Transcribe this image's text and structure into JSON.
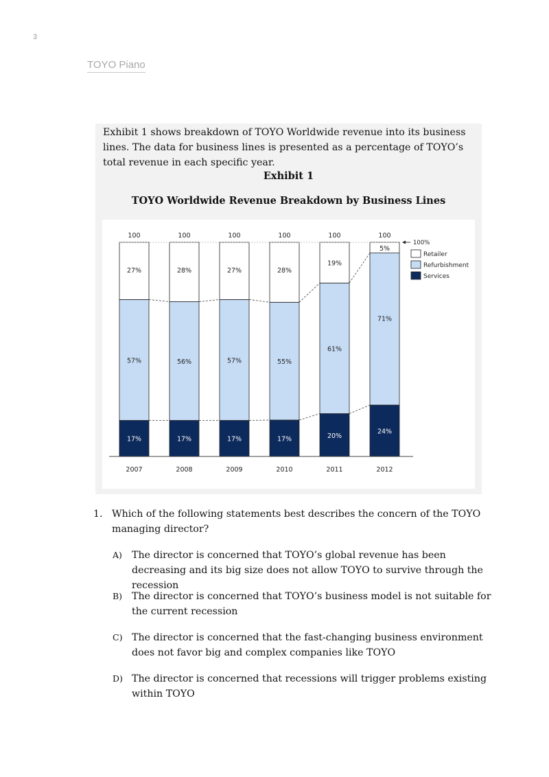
{
  "page_number": "3",
  "header": {
    "title": "TOYO Piano"
  },
  "exhibit": {
    "intro": "Exhibit 1 shows breakdown of TOYO Worldwide revenue into its business lines. The data for business lines is presented as a percentage of TOYO’s total revenue in each specific year.",
    "label": "Exhibit 1",
    "title": "TOYO Worldwide Revenue Breakdown by Business Lines"
  },
  "chart_data": {
    "type": "bar",
    "stacked": true,
    "categories": [
      "2007",
      "2008",
      "2009",
      "2010",
      "2011",
      "2012"
    ],
    "totals": [
      "100",
      "100",
      "100",
      "100",
      "100",
      "100"
    ],
    "series": [
      {
        "name": "Services",
        "values": [
          17,
          17,
          17,
          17,
          20,
          24
        ],
        "labels": [
          "17%",
          "17%",
          "17%",
          "17%",
          "20%",
          "24%"
        ],
        "color": "#0d2a5c"
      },
      {
        "name": "Refurbishment",
        "values": [
          57,
          56,
          57,
          55,
          61,
          71
        ],
        "labels": [
          "57%",
          "56%",
          "57%",
          "55%",
          "61%",
          "71%"
        ],
        "color": "#c6dcf5"
      },
      {
        "name": "Retailer",
        "values": [
          27,
          28,
          27,
          28,
          19,
          5
        ],
        "labels": [
          "27%",
          "28%",
          "27%",
          "28%",
          "19%",
          "5%"
        ],
        "color": "#ffffff"
      }
    ],
    "reference_line_label": "100%",
    "ylim": [
      0,
      100
    ],
    "legend_position": "top-right",
    "grid": false
  },
  "question": {
    "number": "1.",
    "text": "Which of the following statements best describes the concern of the TOYO managing director?",
    "options": [
      {
        "letter": "A)",
        "text": "The director is concerned that TOYO’s global revenue has been decreasing and its big size does not allow TOYO to survive through the recession"
      },
      {
        "letter": "B)",
        "text": "The director is concerned that TOYO’s business model is not suitable for the current recession"
      },
      {
        "letter": "C)",
        "text": "The director is concerned that the fast-changing business environment does not favor big and complex companies like TOYO"
      },
      {
        "letter": "D)",
        "text": "The director is concerned that recessions will trigger problems existing within TOYO"
      }
    ]
  }
}
